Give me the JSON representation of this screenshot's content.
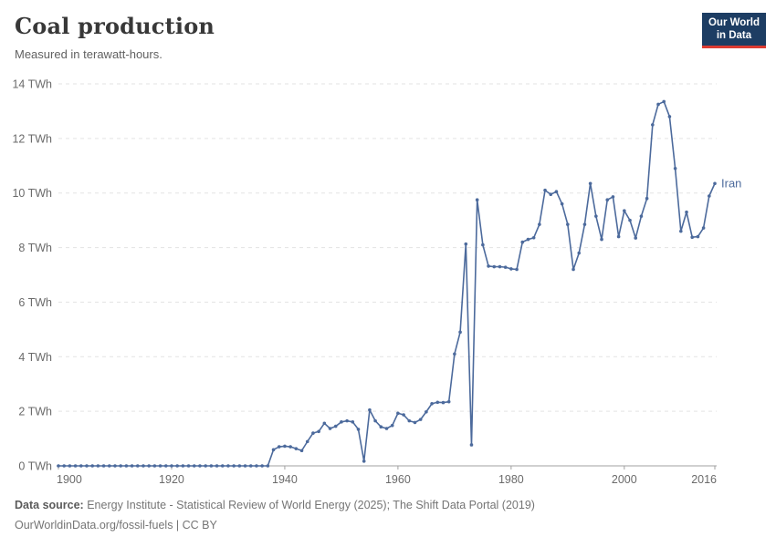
{
  "header": {
    "title": "Coal production",
    "subtitle": "Measured in terawatt-hours."
  },
  "logo": {
    "line1": "Our World",
    "line2": "in Data",
    "bg_color": "#1d3d63",
    "accent_color": "#dc3b32"
  },
  "chart_data": {
    "type": "line",
    "title": "Coal production",
    "ylabel": "terawatt-hours",
    "unit": "TWh",
    "grid": "horizontal-dashed",
    "legend_position": "end-of-line-label",
    "x_range": [
      1900,
      2016
    ],
    "y_range": [
      0,
      14
    ],
    "x_ticks": [
      {
        "v": 1900,
        "label": "1900"
      },
      {
        "v": 1920,
        "label": "1920"
      },
      {
        "v": 1940,
        "label": "1940"
      },
      {
        "v": 1960,
        "label": "1960"
      },
      {
        "v": 1980,
        "label": "1980"
      },
      {
        "v": 2000,
        "label": "2000"
      },
      {
        "v": 2016,
        "label": "2016"
      }
    ],
    "y_ticks": [
      {
        "v": 0,
        "label": "0 TWh"
      },
      {
        "v": 2,
        "label": "2 TWh"
      },
      {
        "v": 4,
        "label": "4 TWh"
      },
      {
        "v": 6,
        "label": "6 TWh"
      },
      {
        "v": 8,
        "label": "8 TWh"
      },
      {
        "v": 10,
        "label": "10 TWh"
      },
      {
        "v": 12,
        "label": "12 TWh"
      },
      {
        "v": 14,
        "label": "14 TWh"
      }
    ],
    "series": [
      {
        "name": "Iran",
        "color": "#4c6a9c",
        "start_year": 1900,
        "values": [
          0,
          0,
          0,
          0,
          0,
          0,
          0,
          0,
          0,
          0,
          0,
          0,
          0,
          0,
          0,
          0,
          0,
          0,
          0,
          0,
          0,
          0,
          0,
          0,
          0,
          0,
          0,
          0,
          0,
          0,
          0,
          0,
          0,
          0,
          0,
          0,
          0,
          0,
          0.59,
          0.7,
          0.72,
          0.7,
          0.63,
          0.56,
          0.89,
          1.2,
          1.26,
          1.56,
          1.37,
          1.45,
          1.61,
          1.65,
          1.61,
          1.34,
          0.17,
          2.05,
          1.65,
          1.43,
          1.37,
          1.48,
          1.93,
          1.87,
          1.65,
          1.59,
          1.7,
          1.98,
          2.28,
          2.33,
          2.32,
          2.35,
          4.1,
          4.9,
          8.13,
          0.77,
          9.75,
          8.1,
          7.32,
          7.3,
          7.3,
          7.28,
          7.22,
          7.2,
          8.2,
          8.3,
          8.36,
          8.85,
          10.1,
          9.95,
          10.05,
          9.6,
          8.85,
          7.2,
          7.8,
          8.85,
          10.35,
          9.15,
          8.3,
          9.75,
          9.86,
          8.4,
          9.35,
          9.0,
          8.35,
          9.15,
          9.8,
          12.5,
          13.25,
          13.35,
          12.8,
          10.9,
          8.6,
          9.3,
          8.38,
          8.4,
          8.72,
          9.89,
          10.35
        ]
      }
    ]
  },
  "footer": {
    "source_label": "Data source:",
    "source_text": " Energy Institute - Statistical Review of World Energy (2025); The Shift Data Portal (2019)",
    "link_line": "OurWorldinData.org/fossil-fuels | CC BY"
  },
  "colors": {
    "axis_label": "#6b6b6b",
    "gridline": "#e3e3e3",
    "baseline": "#a1a1a1",
    "line": "#4c6a9c"
  }
}
